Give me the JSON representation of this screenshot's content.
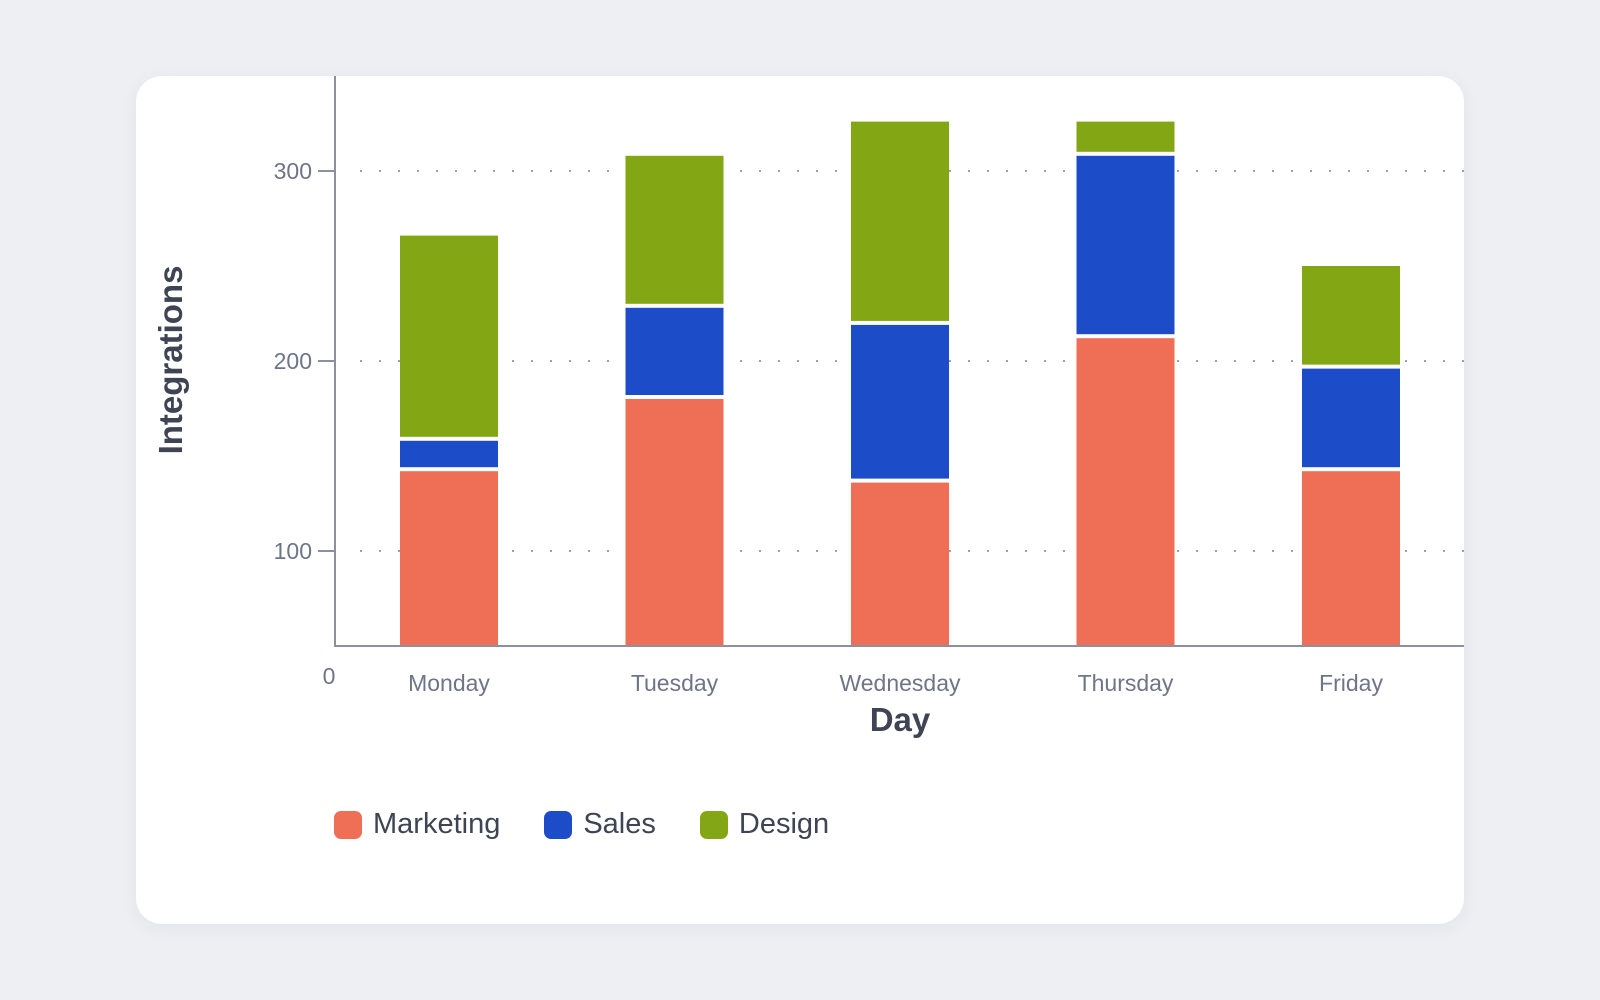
{
  "chart_data": {
    "type": "bar",
    "stacked": true,
    "categories": [
      "Monday",
      "Tuesday",
      "Wednesday",
      "Thursday",
      "Friday"
    ],
    "series": [
      {
        "name": "Marketing",
        "color": "#ee6f56",
        "values": [
          92,
          130,
          86,
          162,
          92
        ]
      },
      {
        "name": "Sales",
        "color": "#1c4cc8",
        "values": [
          16,
          48,
          83,
          96,
          54
        ]
      },
      {
        "name": "Design",
        "color": "#82a614",
        "values": [
          108,
          80,
          107,
          18,
          54
        ]
      }
    ],
    "xlabel": "Day",
    "ylabel": "Integrations",
    "yticks": [
      0,
      100,
      200,
      300
    ],
    "ylim": [
      50,
      350
    ],
    "grid": true,
    "legend_position": "bottom-left"
  }
}
